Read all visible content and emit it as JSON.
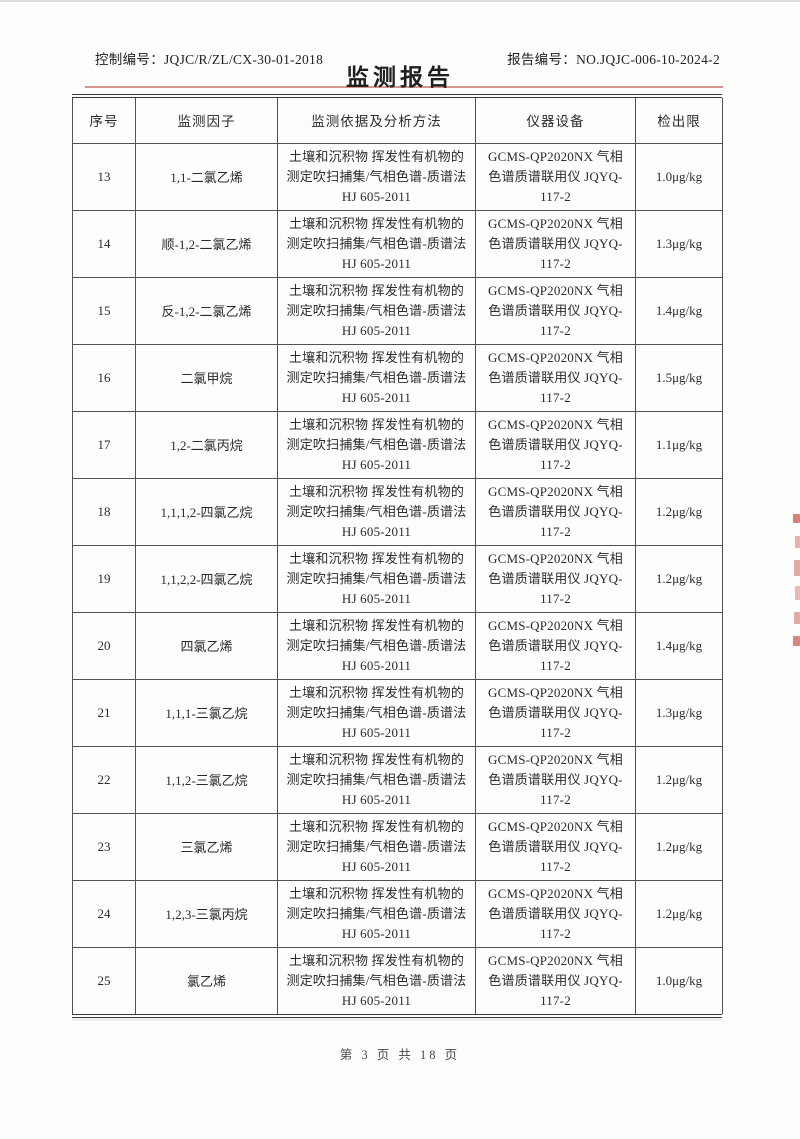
{
  "page": {
    "control_no_label": "控制编号：",
    "control_no": "JQJC/R/ZL/CX-30-01-2018",
    "report_no_label": "报告编号：",
    "report_no": "NO.JQJC-006-10-2024-2",
    "title": "监测报告",
    "footer": "第 3 页 共 18 页"
  },
  "colors": {
    "title_rule_red": "#bb5248",
    "stamp_red": "#c9554a",
    "border_dark": "#3c3c3c"
  },
  "table": {
    "headers": [
      "序号",
      "监测因子",
      "监测依据及分析方法",
      "仪器设备",
      "检出限"
    ],
    "rows": [
      {
        "no": "13",
        "factor": "1,1-二氯乙烯",
        "method": "土壤和沉积物 挥发性有机物的测定吹扫捕集/气相色谱-质谱法 HJ 605-2011",
        "instrument": "GCMS-QP2020NX 气相色谱质谱联用仪 JQYQ-117-2",
        "limit": "1.0μg/kg"
      },
      {
        "no": "14",
        "factor": "顺-1,2-二氯乙烯",
        "method": "土壤和沉积物 挥发性有机物的测定吹扫捕集/气相色谱-质谱法 HJ 605-2011",
        "instrument": "GCMS-QP2020NX 气相色谱质谱联用仪 JQYQ-117-2",
        "limit": "1.3μg/kg"
      },
      {
        "no": "15",
        "factor": "反-1,2-二氯乙烯",
        "method": "土壤和沉积物 挥发性有机物的测定吹扫捕集/气相色谱-质谱法 HJ 605-2011",
        "instrument": "GCMS-QP2020NX 气相色谱质谱联用仪 JQYQ-117-2",
        "limit": "1.4μg/kg"
      },
      {
        "no": "16",
        "factor": "二氯甲烷",
        "method": "土壤和沉积物 挥发性有机物的测定吹扫捕集/气相色谱-质谱法 HJ 605-2011",
        "instrument": "GCMS-QP2020NX 气相色谱质谱联用仪 JQYQ-117-2",
        "limit": "1.5μg/kg"
      },
      {
        "no": "17",
        "factor": "1,2-二氯丙烷",
        "method": "土壤和沉积物 挥发性有机物的测定吹扫捕集/气相色谱-质谱法 HJ 605-2011",
        "instrument": "GCMS-QP2020NX 气相色谱质谱联用仪 JQYQ-117-2",
        "limit": "1.1μg/kg"
      },
      {
        "no": "18",
        "factor": "1,1,1,2-四氯乙烷",
        "method": "土壤和沉积物 挥发性有机物的测定吹扫捕集/气相色谱-质谱法 HJ 605-2011",
        "instrument": "GCMS-QP2020NX 气相色谱质谱联用仪 JQYQ-117-2",
        "limit": "1.2μg/kg"
      },
      {
        "no": "19",
        "factor": "1,1,2,2-四氯乙烷",
        "method": "土壤和沉积物 挥发性有机物的测定吹扫捕集/气相色谱-质谱法 HJ 605-2011",
        "instrument": "GCMS-QP2020NX 气相色谱质谱联用仪 JQYQ-117-2",
        "limit": "1.2μg/kg"
      },
      {
        "no": "20",
        "factor": "四氯乙烯",
        "method": "土壤和沉积物 挥发性有机物的测定吹扫捕集/气相色谱-质谱法 HJ 605-2011",
        "instrument": "GCMS-QP2020NX 气相色谱质谱联用仪 JQYQ-117-2",
        "limit": "1.4μg/kg"
      },
      {
        "no": "21",
        "factor": "1,1,1-三氯乙烷",
        "method": "土壤和沉积物 挥发性有机物的测定吹扫捕集/气相色谱-质谱法 HJ 605-2011",
        "instrument": "GCMS-QP2020NX 气相色谱质谱联用仪 JQYQ-117-2",
        "limit": "1.3μg/kg"
      },
      {
        "no": "22",
        "factor": "1,1,2-三氯乙烷",
        "method": "土壤和沉积物 挥发性有机物的测定吹扫捕集/气相色谱-质谱法 HJ 605-2011",
        "instrument": "GCMS-QP2020NX 气相色谱质谱联用仪 JQYQ-117-2",
        "limit": "1.2μg/kg"
      },
      {
        "no": "23",
        "factor": "三氯乙烯",
        "method": "土壤和沉积物 挥发性有机物的测定吹扫捕集/气相色谱-质谱法 HJ 605-2011",
        "instrument": "GCMS-QP2020NX 气相色谱质谱联用仪 JQYQ-117-2",
        "limit": "1.2μg/kg"
      },
      {
        "no": "24",
        "factor": "1,2,3-三氯丙烷",
        "method": "土壤和沉积物 挥发性有机物的测定吹扫捕集/气相色谱-质谱法 HJ 605-2011",
        "instrument": "GCMS-QP2020NX 气相色谱质谱联用仪 JQYQ-117-2",
        "limit": "1.2μg/kg"
      },
      {
        "no": "25",
        "factor": "氯乙烯",
        "method": "土壤和沉积物 挥发性有机物的测定吹扫捕集/气相色谱-质谱法 HJ 605-2011",
        "instrument": "GCMS-QP2020NX 气相色谱质谱联用仪 JQYQ-117-2",
        "limit": "1.0μg/kg"
      }
    ]
  }
}
